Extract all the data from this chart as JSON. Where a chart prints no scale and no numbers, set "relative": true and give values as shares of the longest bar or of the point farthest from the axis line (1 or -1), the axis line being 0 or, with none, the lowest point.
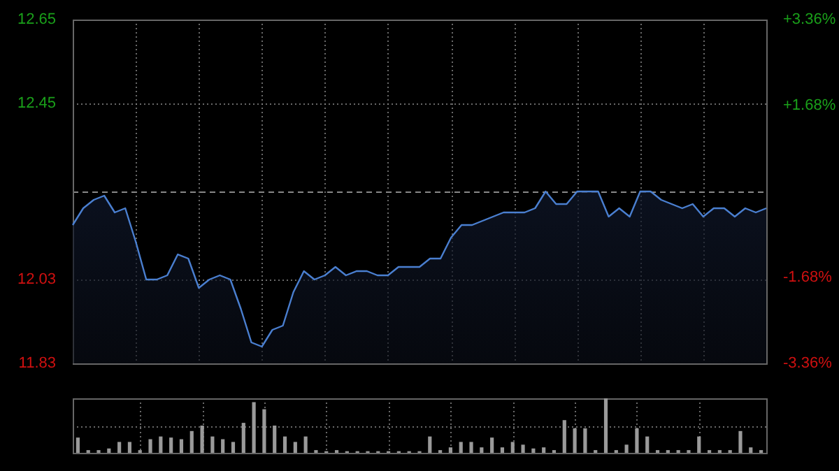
{
  "chart_data": [
    {
      "type": "area",
      "categories": [
        null,
        null,
        null,
        null,
        null,
        null,
        null,
        null,
        null,
        null,
        null,
        null,
        null,
        null,
        null,
        null,
        null,
        null,
        null,
        null,
        null,
        null,
        null,
        null,
        null,
        null,
        null,
        null,
        null,
        null,
        null,
        null,
        null,
        null,
        null,
        null,
        null,
        null,
        null,
        null,
        null,
        null,
        null,
        null,
        null,
        null,
        null,
        null,
        null,
        null,
        null,
        null,
        null,
        null,
        null,
        null,
        null,
        null,
        null,
        null,
        null,
        null,
        null,
        null,
        null,
        null,
        null
      ],
      "series": [
        {
          "color": "#4a7fd0",
          "values": [
            12.16,
            12.2,
            12.22,
            12.23,
            12.19,
            12.2,
            12.12,
            12.03,
            12.03,
            12.04,
            12.09,
            12.08,
            12.01,
            12.03,
            12.04,
            12.03,
            11.96,
            11.88,
            11.87,
            11.91,
            11.92,
            12.0,
            12.05,
            12.03,
            12.04,
            12.06,
            12.04,
            12.05,
            12.05,
            12.04,
            12.04,
            12.06,
            12.06,
            12.06,
            12.08,
            12.08,
            12.13,
            12.16,
            12.16,
            12.17,
            12.18,
            12.19,
            12.19,
            12.19,
            12.2,
            12.24,
            12.21,
            12.21,
            12.24,
            12.24,
            12.24,
            12.18,
            12.2,
            12.18,
            12.24,
            12.24,
            12.22,
            12.21,
            12.2,
            12.21,
            12.18,
            12.2,
            12.2,
            12.18,
            12.2,
            12.19,
            12.2
          ]
        }
      ],
      "ylim": [
        11.83,
        12.65
      ],
      "yticks": [
        11.83,
        12.03,
        12.45,
        12.65
      ],
      "y2lim": [
        -3.36,
        3.36
      ],
      "y2ticks": [
        {
          "value": -3.36,
          "label": "-3.36%"
        },
        {
          "value": -1.68,
          "label": "-1.68%"
        },
        {
          "value": 1.68,
          "label": "+1.68%"
        },
        {
          "value": 3.36,
          "label": "+3.36%"
        }
      ],
      "ref_lines": [
        {
          "axis": "y",
          "value": 12.24,
          "line_style": "dashed",
          "color": "#888888"
        }
      ],
      "grid": true,
      "legend": false,
      "marker": "none",
      "line_style": "solid"
    },
    {
      "type": "bar",
      "relative": true,
      "categories": [
        null,
        null,
        null,
        null,
        null,
        null,
        null,
        null,
        null,
        null,
        null,
        null,
        null,
        null,
        null,
        null,
        null,
        null,
        null,
        null,
        null,
        null,
        null,
        null,
        null,
        null,
        null,
        null,
        null,
        null,
        null,
        null,
        null,
        null,
        null,
        null,
        null,
        null,
        null,
        null,
        null,
        null,
        null,
        null,
        null,
        null,
        null,
        null,
        null,
        null,
        null,
        null,
        null,
        null,
        null,
        null,
        null,
        null,
        null,
        null,
        null,
        null,
        null,
        null,
        null,
        null,
        null
      ],
      "values": [
        0.28,
        0.05,
        0.05,
        0.08,
        0.2,
        0.2,
        0.05,
        0.25,
        0.3,
        0.28,
        0.25,
        0.4,
        0.5,
        0.3,
        0.25,
        0.2,
        0.55,
        0.93,
        0.8,
        0.5,
        0.3,
        0.2,
        0.3,
        0.05,
        0.03,
        0.05,
        0.03,
        0.03,
        0.03,
        0.03,
        0.03,
        0.03,
        0.03,
        0.03,
        0.3,
        0.05,
        0.1,
        0.2,
        0.2,
        0.1,
        0.28,
        0.1,
        0.2,
        0.15,
        0.08,
        0.1,
        0.05,
        0.6,
        0.45,
        0.45,
        0.05,
        1.0,
        0.05,
        0.15,
        0.45,
        0.3,
        0.05,
        0.05,
        0.05,
        0.05,
        0.3,
        0.05,
        0.05,
        0.05,
        0.4,
        0.1,
        0.05
      ],
      "color": "#9a9a9a",
      "grid": true,
      "legend": false
    }
  ]
}
